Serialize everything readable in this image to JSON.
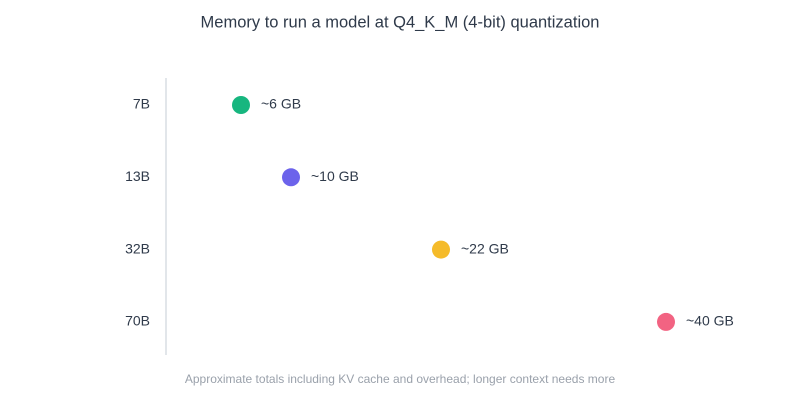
{
  "chart_data": {
    "type": "dot",
    "title": "Memory to run a model at Q4_K_M (4-bit) quantization",
    "caption": "Approximate totals including KV cache and overhead; longer context needs more",
    "categories": [
      "7B",
      "13B",
      "32B",
      "70B"
    ],
    "values": [
      6,
      10,
      22,
      40
    ],
    "value_labels": [
      "~6 GB",
      "~10 GB",
      "~22 GB",
      "~40 GB"
    ],
    "colors": [
      "#17b67f",
      "#6c63eb",
      "#f5bb2a",
      "#f26382"
    ],
    "xlim": [
      0,
      48
    ]
  }
}
